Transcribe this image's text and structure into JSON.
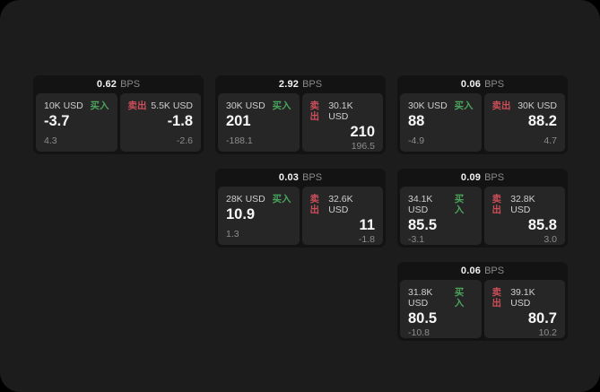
{
  "labels": {
    "bps_unit": "BPS",
    "buy": "买入",
    "sell": "卖出"
  },
  "colors": {
    "outer_background": "#000000",
    "panel_background": "#1c1c1c",
    "card_background": "#131313",
    "tile_background": "#262626",
    "buy_green": "#4aa45c",
    "sell_red": "#cc4e58",
    "value_white": "#f7f7f7",
    "muted_gray": "#8d8d8d"
  },
  "cards": [
    {
      "bps": "0.62",
      "buy": {
        "amount": "10K USD",
        "price": "-3.7",
        "delta": "4.3"
      },
      "sell": {
        "amount": "5.5K USD",
        "price": "-1.8",
        "delta": "-2.6"
      }
    },
    {
      "bps": "2.92",
      "buy": {
        "amount": "30K USD",
        "price": "201",
        "delta": "-188.1"
      },
      "sell": {
        "amount": "30.1K USD",
        "price": "210",
        "delta": "196.5"
      }
    },
    {
      "bps": "0.06",
      "buy": {
        "amount": "30K USD",
        "price": "88",
        "delta": "-4.9"
      },
      "sell": {
        "amount": "30K USD",
        "price": "88.2",
        "delta": "4.7"
      }
    },
    {
      "bps": "0.03",
      "buy": {
        "amount": "28K USD",
        "price": "10.9",
        "delta": "1.3"
      },
      "sell": {
        "amount": "32.6K USD",
        "price": "11",
        "delta": "-1.8"
      }
    },
    {
      "bps": "0.09",
      "buy": {
        "amount": "34.1K USD",
        "price": "85.5",
        "delta": "-3.1"
      },
      "sell": {
        "amount": "32.8K USD",
        "price": "85.8",
        "delta": "3.0"
      }
    },
    {
      "bps": "0.06",
      "buy": {
        "amount": "31.8K USD",
        "price": "80.5",
        "delta": "-10.8"
      },
      "sell": {
        "amount": "39.1K USD",
        "price": "80.7",
        "delta": "10.2"
      }
    }
  ]
}
